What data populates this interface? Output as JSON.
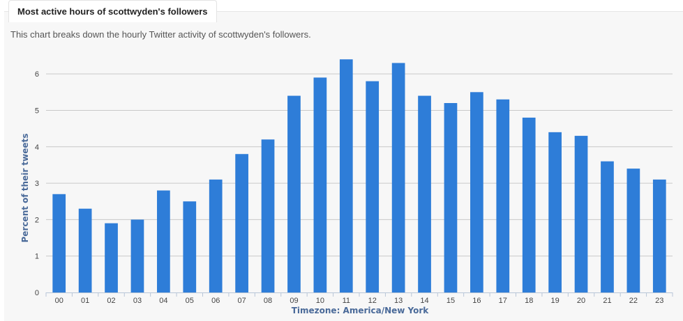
{
  "tab": {
    "title": "Most active hours of scottwyden's followers"
  },
  "description": "This chart breaks down the hourly Twitter activity of scottwyden's followers.",
  "chart_data": {
    "type": "bar",
    "categories": [
      "00",
      "01",
      "02",
      "03",
      "04",
      "05",
      "06",
      "07",
      "08",
      "09",
      "10",
      "11",
      "12",
      "13",
      "14",
      "15",
      "16",
      "17",
      "18",
      "19",
      "20",
      "21",
      "22",
      "23"
    ],
    "values": [
      2.7,
      2.3,
      1.9,
      2.0,
      2.8,
      2.5,
      3.1,
      3.8,
      4.2,
      5.4,
      5.9,
      6.4,
      5.8,
      6.3,
      5.4,
      5.2,
      5.5,
      5.3,
      4.8,
      4.4,
      4.3,
      3.6,
      3.4,
      3.1
    ],
    "title": "",
    "xlabel": "Timezone: America/New York",
    "ylabel": "Percent of their tweets",
    "ylim": [
      0,
      6.5
    ],
    "yticks": [
      0,
      1,
      2,
      3,
      4,
      5,
      6
    ],
    "grid": true,
    "bar_color": "#2e7dd8",
    "grid_color": "#c8c8c8"
  }
}
